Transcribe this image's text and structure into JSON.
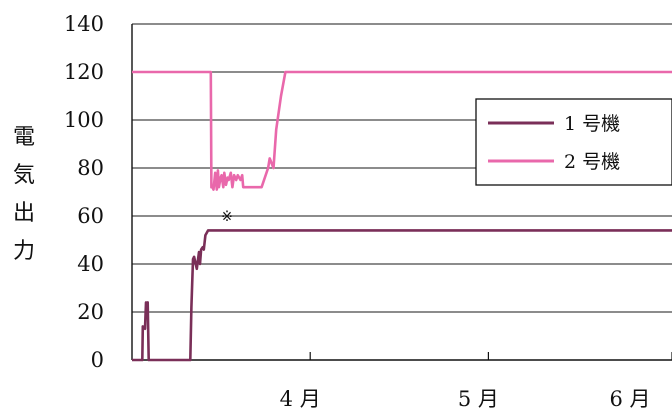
{
  "chart_data": {
    "type": "line",
    "ylabel": "電気出力",
    "ylim": [
      0,
      140
    ],
    "yticks": [
      "0",
      "20",
      "40",
      "60",
      "80",
      "100",
      "120",
      "140"
    ],
    "xlim": [
      0,
      100
    ],
    "x_ticks": [
      {
        "value": 33,
        "label": "4 月"
      },
      {
        "value": 66,
        "label": "5 月"
      },
      {
        "value": 100,
        "label": "6 月"
      }
    ],
    "grid": true,
    "legend_position": "right",
    "annotation": {
      "text": "※",
      "x": 17.6,
      "y": 58
    },
    "series": [
      {
        "name": "1 号機",
        "color": "#7a2f58",
        "x": [
          0,
          1.9,
          2.0,
          2.4,
          2.6,
          2.8,
          2.9,
          3.1,
          3.2,
          3.3,
          3.4,
          3.6,
          10.8,
          11.0,
          11.3,
          11.5,
          12.0,
          12.4,
          12.6,
          12.8,
          13.1,
          13.3,
          13.6,
          14.1,
          14.4,
          15.6,
          100
        ],
        "y": [
          0,
          0,
          14,
          13,
          24,
          23,
          24,
          0,
          0,
          0,
          0,
          0,
          0,
          22,
          42,
          43,
          38,
          45,
          40,
          46,
          47,
          46,
          52,
          54,
          54,
          54,
          54
        ]
      },
      {
        "name": "2 号機",
        "color": "#e968ab",
        "x": [
          0,
          14.6,
          14.7,
          14.9,
          15.1,
          15.4,
          15.7,
          15.9,
          16.1,
          16.4,
          16.6,
          16.9,
          17.1,
          17.4,
          17.7,
          17.9,
          18.3,
          18.6,
          18.9,
          19.3,
          19.6,
          20.1,
          20.4,
          20.6,
          21.0,
          21.5,
          22.5,
          23.0,
          24.0,
          25.2,
          25.5,
          26.2,
          26.7,
          27.6,
          28.4,
          100
        ],
        "y": [
          120,
          120,
          72,
          72,
          71,
          78,
          71,
          79,
          72,
          76,
          77,
          72,
          78,
          73,
          76,
          75,
          78,
          72,
          77,
          75,
          77,
          75,
          77,
          72,
          72,
          72,
          72,
          72,
          72,
          80,
          84,
          80,
          96,
          110,
          120,
          120
        ]
      }
    ]
  }
}
